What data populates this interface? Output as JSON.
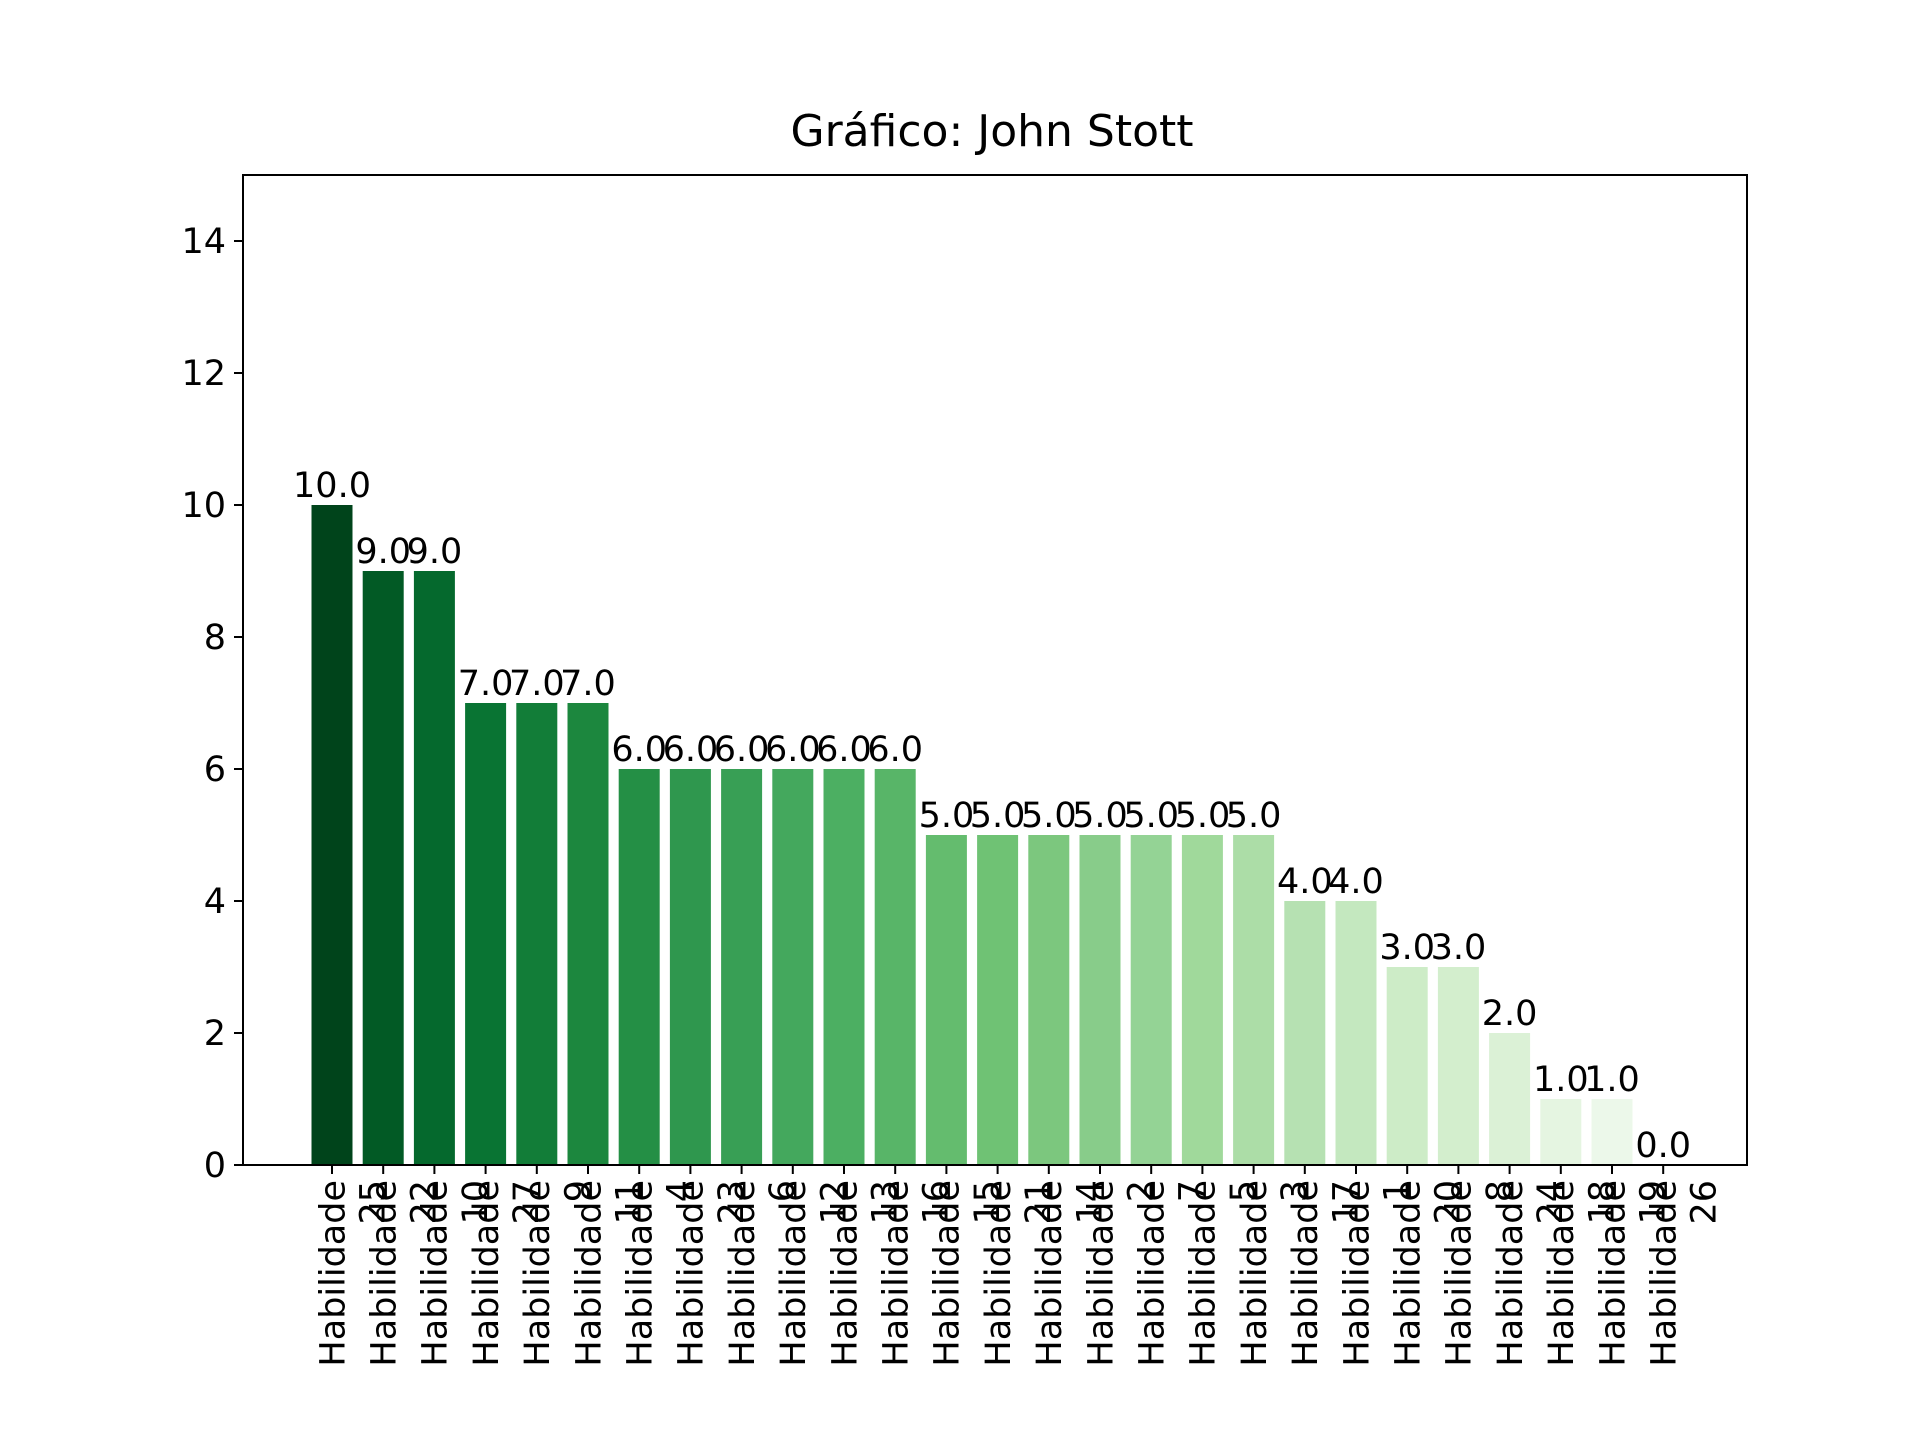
{
  "chart_data": {
    "type": "bar",
    "title": "Gráfico: John Stott",
    "xlabel": "",
    "ylabel": "",
    "ylim": [
      0,
      15
    ],
    "yticks": [
      0,
      2,
      4,
      6,
      8,
      10,
      12,
      14
    ],
    "grid": false,
    "legend": "none",
    "categories": [
      "Habilidade 25",
      "Habilidade 22",
      "Habilidade 10",
      "Habilidade 27",
      "Habilidade 9",
      "Habilidade 11",
      "Habilidade 4",
      "Habilidade 23",
      "Habilidade 6",
      "Habilidade 12",
      "Habilidade 13",
      "Habilidade 16",
      "Habilidade 15",
      "Habilidade 21",
      "Habilidade 14",
      "Habilidade 2",
      "Habilidade 7",
      "Habilidade 5",
      "Habilidade 3",
      "Habilidade 17",
      "Habilidade 1",
      "Habilidade 20",
      "Habilidade 8",
      "Habilidade 24",
      "Habilidade 18",
      "Habilidade 19",
      "Habilidade 26"
    ],
    "values": [
      10,
      9,
      9,
      7,
      7,
      7,
      6,
      6,
      6,
      6,
      6,
      6,
      5,
      5,
      5,
      5,
      5,
      5,
      5,
      4,
      4,
      3,
      3,
      2,
      1,
      1,
      0
    ],
    "value_labels": [
      "10.0",
      "9.0",
      "9.0",
      "7.0",
      "7.0",
      "7.0",
      "6.0",
      "6.0",
      "6.0",
      "6.0",
      "6.0",
      "6.0",
      "5.0",
      "5.0",
      "5.0",
      "5.0",
      "5.0",
      "5.0",
      "5.0",
      "4.0",
      "4.0",
      "3.0",
      "3.0",
      "2.0",
      "1.0",
      "1.0",
      "0.0"
    ],
    "colors": [
      "#00441b",
      "#025a25",
      "#05692d",
      "#097433",
      "#127d38",
      "#1c873e",
      "#248f45",
      "#2f974e",
      "#389f55",
      "#44a85d",
      "#4caf62",
      "#58b568",
      "#64bc6e",
      "#6fc274",
      "#7cc77e",
      "#88cc8a",
      "#94d395",
      "#a0d99b",
      "#acdda7",
      "#b6e1b2",
      "#c4e8bf",
      "#cdecc7",
      "#d3eecd",
      "#dbf1d6",
      "#e5f5e1",
      "#ecf8ea",
      "#f7fcf5"
    ]
  }
}
